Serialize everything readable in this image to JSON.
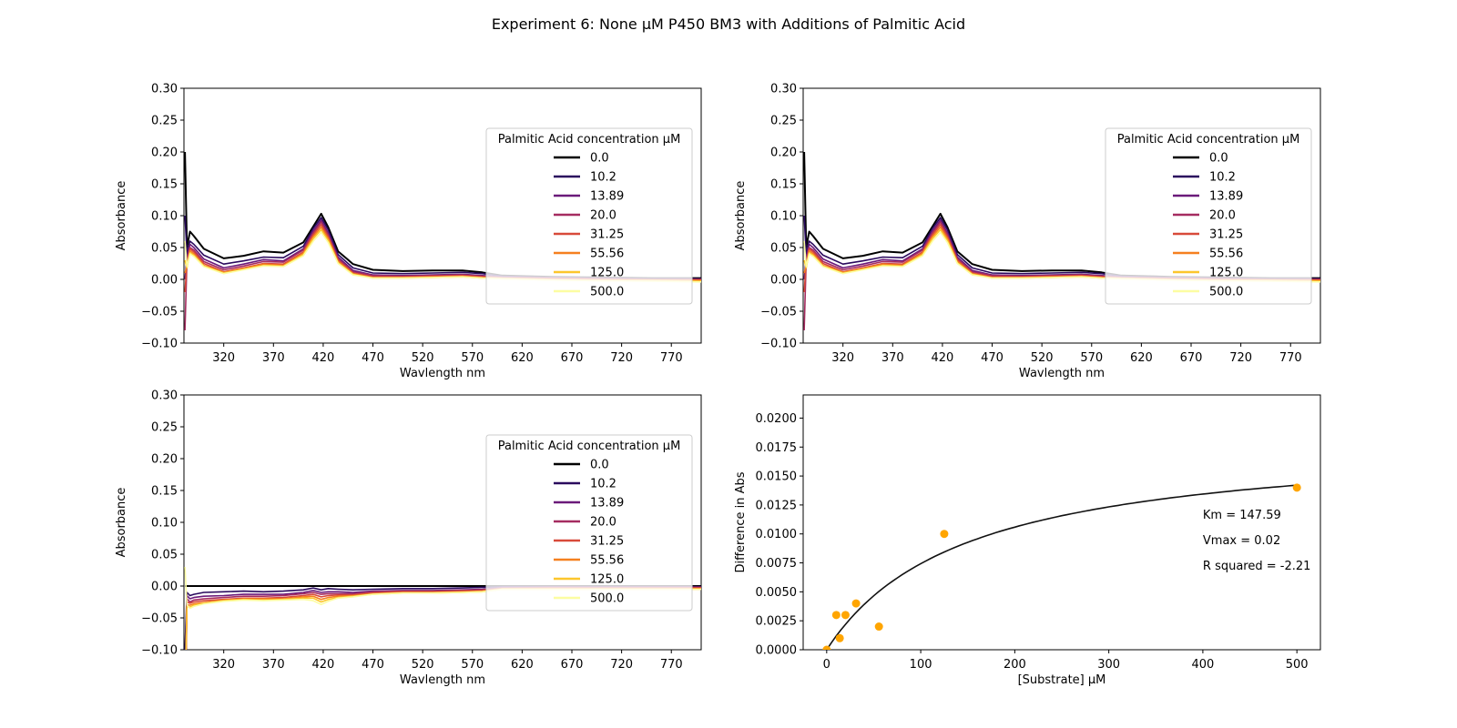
{
  "figure": {
    "title": "Experiment 6: None μM P450 BM3 with Additions of Palmitic Acid"
  },
  "colors": {
    "series": [
      "#000000",
      "#2a0a5e",
      "#6b1a7a",
      "#a52c60",
      "#d84a3a",
      "#f5801f",
      "#fcc62c",
      "#fcfda2"
    ],
    "fit_line": "#111111",
    "points": "#ffa500"
  },
  "chart_data": [
    {
      "type": "line",
      "panel": "top-left",
      "xlabel": "Wavlength nm",
      "ylabel": "Absorbance",
      "xlim": [
        280,
        800
      ],
      "ylim": [
        -0.1,
        0.3
      ],
      "xticks": [
        320,
        370,
        420,
        470,
        520,
        570,
        620,
        670,
        720,
        770
      ],
      "yticks": [
        -0.1,
        -0.05,
        0.0,
        0.05,
        0.1,
        0.15,
        0.2,
        0.25,
        0.3
      ],
      "ytick_labels": [
        "−0.10",
        "−0.05",
        "0.00",
        "0.05",
        "0.10",
        "0.15",
        "0.20",
        "0.25",
        "0.30"
      ],
      "legend_title": "Palmitic Acid concentration µM",
      "legend_position": "center-right",
      "x": [
        281,
        283,
        286,
        290,
        300,
        320,
        340,
        360,
        380,
        400,
        410,
        418,
        425,
        435,
        450,
        470,
        500,
        530,
        560,
        580,
        600,
        650,
        700,
        750,
        800
      ],
      "series": [
        {
          "name": "0.0",
          "values": [
            0.2,
            0.05,
            0.075,
            0.068,
            0.048,
            0.033,
            0.037,
            0.044,
            0.042,
            0.058,
            0.083,
            0.103,
            0.082,
            0.044,
            0.024,
            0.015,
            0.013,
            0.014,
            0.014,
            0.011,
            0.006,
            0.004,
            0.003,
            0.002,
            0.002
          ]
        },
        {
          "name": "10.2",
          "values": [
            0.1,
            0.04,
            0.06,
            0.055,
            0.038,
            0.024,
            0.029,
            0.035,
            0.034,
            0.052,
            0.08,
            0.097,
            0.078,
            0.039,
            0.018,
            0.01,
            0.009,
            0.01,
            0.011,
            0.009,
            0.005,
            0.003,
            0.002,
            0.001,
            0.001
          ]
        },
        {
          "name": "13.89",
          "values": [
            0.0,
            0.035,
            0.055,
            0.05,
            0.032,
            0.018,
            0.024,
            0.031,
            0.029,
            0.048,
            0.076,
            0.093,
            0.073,
            0.035,
            0.014,
            0.007,
            0.006,
            0.007,
            0.008,
            0.006,
            0.004,
            0.002,
            0.001,
            0.0,
            0.0
          ]
        },
        {
          "name": "20.0",
          "values": [
            -0.08,
            0.03,
            0.05,
            0.046,
            0.028,
            0.015,
            0.021,
            0.028,
            0.027,
            0.046,
            0.073,
            0.09,
            0.07,
            0.032,
            0.012,
            0.006,
            0.005,
            0.006,
            0.007,
            0.005,
            0.003,
            0.002,
            0.001,
            0.0,
            0.0
          ]
        },
        {
          "name": "31.25",
          "values": [
            -0.02,
            0.025,
            0.048,
            0.043,
            0.025,
            0.012,
            0.018,
            0.025,
            0.024,
            0.043,
            0.07,
            0.086,
            0.067,
            0.03,
            0.01,
            0.004,
            0.004,
            0.005,
            0.006,
            0.004,
            0.002,
            0.001,
            0.0,
            -0.001,
            -0.001
          ]
        },
        {
          "name": "55.56",
          "values": [
            0.01,
            0.02,
            0.045,
            0.04,
            0.022,
            0.011,
            0.017,
            0.024,
            0.022,
            0.041,
            0.067,
            0.082,
            0.064,
            0.028,
            0.009,
            0.003,
            0.003,
            0.004,
            0.005,
            0.003,
            0.002,
            0.0,
            -0.001,
            -0.001,
            -0.002
          ]
        },
        {
          "name": "125.0",
          "values": [
            0.03,
            0.018,
            0.042,
            0.038,
            0.021,
            0.01,
            0.016,
            0.022,
            0.021,
            0.039,
            0.064,
            0.078,
            0.061,
            0.026,
            0.008,
            0.002,
            0.002,
            0.003,
            0.004,
            0.002,
            0.001,
            -0.001,
            -0.002,
            -0.002,
            -0.003
          ]
        },
        {
          "name": "500.0",
          "values": [
            0.06,
            0.02,
            0.04,
            0.036,
            0.02,
            0.009,
            0.015,
            0.021,
            0.02,
            0.037,
            0.06,
            0.074,
            0.058,
            0.025,
            0.007,
            0.002,
            0.002,
            0.003,
            0.004,
            0.002,
            0.001,
            -0.001,
            -0.002,
            -0.003,
            -0.004
          ]
        }
      ]
    },
    {
      "type": "line",
      "panel": "top-right",
      "xlabel": "Wavlength nm",
      "ylabel": "Absorbance",
      "xlim": [
        280,
        800
      ],
      "ylim": [
        -0.1,
        0.3
      ],
      "xticks": [
        320,
        370,
        420,
        470,
        520,
        570,
        620,
        670,
        720,
        770
      ],
      "yticks": [
        -0.1,
        -0.05,
        0.0,
        0.05,
        0.1,
        0.15,
        0.2,
        0.25,
        0.3
      ],
      "ytick_labels": [
        "−0.10",
        "−0.05",
        "0.00",
        "0.05",
        "0.10",
        "0.15",
        "0.20",
        "0.25",
        "0.30"
      ],
      "legend_title": "Palmitic Acid concentration µM",
      "legend_position": "center-right",
      "x": [
        281,
        283,
        286,
        290,
        300,
        320,
        340,
        360,
        380,
        400,
        410,
        418,
        425,
        435,
        450,
        470,
        500,
        530,
        560,
        580,
        600,
        650,
        700,
        750,
        800
      ],
      "series": [
        {
          "name": "0.0",
          "values": [
            0.2,
            0.05,
            0.075,
            0.068,
            0.048,
            0.033,
            0.037,
            0.044,
            0.042,
            0.058,
            0.083,
            0.103,
            0.082,
            0.044,
            0.024,
            0.015,
            0.013,
            0.014,
            0.014,
            0.011,
            0.006,
            0.004,
            0.003,
            0.002,
            0.002
          ]
        },
        {
          "name": "10.2",
          "values": [
            0.1,
            0.04,
            0.06,
            0.055,
            0.038,
            0.024,
            0.029,
            0.035,
            0.034,
            0.052,
            0.08,
            0.097,
            0.078,
            0.039,
            0.018,
            0.01,
            0.009,
            0.01,
            0.011,
            0.009,
            0.005,
            0.003,
            0.002,
            0.001,
            0.001
          ]
        },
        {
          "name": "13.89",
          "values": [
            0.0,
            0.035,
            0.055,
            0.05,
            0.032,
            0.018,
            0.024,
            0.031,
            0.029,
            0.048,
            0.076,
            0.093,
            0.073,
            0.035,
            0.014,
            0.007,
            0.006,
            0.007,
            0.008,
            0.006,
            0.004,
            0.002,
            0.001,
            0.0,
            0.0
          ]
        },
        {
          "name": "20.0",
          "values": [
            -0.08,
            0.03,
            0.05,
            0.046,
            0.028,
            0.015,
            0.021,
            0.028,
            0.027,
            0.046,
            0.073,
            0.09,
            0.07,
            0.032,
            0.012,
            0.006,
            0.005,
            0.006,
            0.007,
            0.005,
            0.003,
            0.002,
            0.001,
            0.0,
            0.0
          ]
        },
        {
          "name": "31.25",
          "values": [
            -0.02,
            0.025,
            0.048,
            0.043,
            0.025,
            0.012,
            0.018,
            0.025,
            0.024,
            0.043,
            0.07,
            0.086,
            0.067,
            0.03,
            0.01,
            0.004,
            0.004,
            0.005,
            0.006,
            0.004,
            0.002,
            0.001,
            0.0,
            -0.001,
            -0.001
          ]
        },
        {
          "name": "55.56",
          "values": [
            0.01,
            0.02,
            0.045,
            0.04,
            0.022,
            0.011,
            0.017,
            0.024,
            0.022,
            0.041,
            0.067,
            0.082,
            0.064,
            0.028,
            0.009,
            0.003,
            0.003,
            0.004,
            0.005,
            0.003,
            0.002,
            0.0,
            -0.001,
            -0.001,
            -0.002
          ]
        },
        {
          "name": "125.0",
          "values": [
            0.03,
            0.018,
            0.042,
            0.038,
            0.021,
            0.01,
            0.016,
            0.022,
            0.021,
            0.039,
            0.064,
            0.078,
            0.061,
            0.026,
            0.008,
            0.002,
            0.002,
            0.003,
            0.004,
            0.002,
            0.001,
            -0.001,
            -0.002,
            -0.002,
            -0.003
          ]
        },
        {
          "name": "500.0",
          "values": [
            0.06,
            0.02,
            0.04,
            0.036,
            0.02,
            0.009,
            0.015,
            0.021,
            0.02,
            0.037,
            0.06,
            0.074,
            0.058,
            0.025,
            0.007,
            0.002,
            0.002,
            0.003,
            0.004,
            0.002,
            0.001,
            -0.001,
            -0.002,
            -0.003,
            -0.004
          ]
        }
      ]
    },
    {
      "type": "line",
      "panel": "bottom-left",
      "xlabel": "Wavlength nm",
      "ylabel": "Absorbance",
      "xlim": [
        280,
        800
      ],
      "ylim": [
        -0.1,
        0.3
      ],
      "xticks": [
        320,
        370,
        420,
        470,
        520,
        570,
        620,
        670,
        720,
        770
      ],
      "yticks": [
        -0.1,
        -0.05,
        0.0,
        0.05,
        0.1,
        0.15,
        0.2,
        0.25,
        0.3
      ],
      "ytick_labels": [
        "−0.10",
        "−0.05",
        "0.00",
        "0.05",
        "0.10",
        "0.15",
        "0.20",
        "0.25",
        "0.30"
      ],
      "legend_title": "Palmitic Acid concentration µM",
      "legend_position": "center-right",
      "x": [
        281,
        283,
        286,
        290,
        300,
        320,
        340,
        360,
        380,
        400,
        410,
        418,
        425,
        435,
        450,
        470,
        500,
        530,
        560,
        580,
        600,
        650,
        700,
        750,
        800
      ],
      "series": [
        {
          "name": "0.0",
          "values": [
            0,
            0,
            0,
            0,
            0,
            0,
            0,
            0,
            0,
            0,
            0,
            0,
            0,
            0,
            0,
            0,
            0,
            0,
            0,
            0,
            0,
            0,
            0,
            0,
            0
          ]
        },
        {
          "name": "10.2",
          "values": [
            -0.1,
            -0.01,
            -0.015,
            -0.013,
            -0.01,
            -0.009,
            -0.008,
            -0.009,
            -0.008,
            -0.006,
            -0.003,
            -0.006,
            -0.004,
            -0.005,
            -0.006,
            -0.005,
            -0.004,
            -0.004,
            -0.003,
            -0.002,
            -0.001,
            -0.001,
            -0.001,
            -0.001,
            -0.001
          ]
        },
        {
          "name": "13.89",
          "values": [
            -0.2,
            -0.015,
            -0.02,
            -0.018,
            -0.016,
            -0.015,
            -0.013,
            -0.013,
            -0.013,
            -0.01,
            -0.007,
            -0.01,
            -0.009,
            -0.009,
            -0.01,
            -0.008,
            -0.007,
            -0.007,
            -0.006,
            -0.005,
            -0.002,
            -0.002,
            -0.002,
            -0.002,
            -0.002
          ]
        },
        {
          "name": "20.0",
          "values": [
            -0.28,
            -0.02,
            -0.025,
            -0.022,
            -0.02,
            -0.018,
            -0.016,
            -0.016,
            -0.015,
            -0.012,
            -0.01,
            -0.013,
            -0.012,
            -0.012,
            -0.012,
            -0.009,
            -0.008,
            -0.008,
            -0.007,
            -0.006,
            -0.003,
            -0.002,
            -0.002,
            -0.002,
            -0.002
          ]
        },
        {
          "name": "31.25",
          "values": [
            -0.22,
            -0.025,
            -0.027,
            -0.025,
            -0.023,
            -0.021,
            -0.019,
            -0.019,
            -0.018,
            -0.015,
            -0.013,
            -0.017,
            -0.015,
            -0.014,
            -0.014,
            -0.011,
            -0.009,
            -0.009,
            -0.008,
            -0.007,
            -0.004,
            -0.003,
            -0.003,
            -0.003,
            -0.003
          ]
        },
        {
          "name": "55.56",
          "values": [
            -0.19,
            -0.03,
            -0.03,
            -0.028,
            -0.026,
            -0.022,
            -0.02,
            -0.02,
            -0.02,
            -0.017,
            -0.016,
            -0.021,
            -0.018,
            -0.016,
            -0.015,
            -0.012,
            -0.01,
            -0.01,
            -0.009,
            -0.008,
            -0.004,
            -0.004,
            -0.004,
            -0.004,
            -0.004
          ]
        },
        {
          "name": "125.0",
          "values": [
            -0.17,
            -0.032,
            -0.033,
            -0.03,
            -0.027,
            -0.023,
            -0.021,
            -0.022,
            -0.021,
            -0.019,
            -0.019,
            -0.025,
            -0.021,
            -0.018,
            -0.016,
            -0.013,
            -0.011,
            -0.011,
            -0.01,
            -0.009,
            -0.005,
            -0.005,
            -0.005,
            -0.005,
            -0.005
          ]
        },
        {
          "name": "500.0",
          "values": [
            0.03,
            -0.03,
            -0.035,
            -0.032,
            -0.028,
            -0.024,
            -0.022,
            -0.023,
            -0.022,
            -0.021,
            -0.023,
            -0.029,
            -0.024,
            -0.019,
            -0.017,
            -0.013,
            -0.011,
            -0.011,
            -0.01,
            -0.009,
            -0.005,
            -0.005,
            -0.005,
            -0.005,
            -0.005
          ]
        }
      ]
    },
    {
      "type": "scatter",
      "panel": "bottom-right",
      "xlabel": "[Substrate] µM",
      "ylabel": "Difference in Abs",
      "xlim": [
        -25,
        525
      ],
      "ylim": [
        0.0,
        0.022
      ],
      "xticks": [
        0,
        100,
        200,
        300,
        400,
        500
      ],
      "yticks": [
        0.0,
        0.0025,
        0.005,
        0.0075,
        0.01,
        0.0125,
        0.015,
        0.0175,
        0.02
      ],
      "ytick_labels": [
        "0.0000",
        "0.0025",
        "0.0050",
        "0.0075",
        "0.0100",
        "0.0125",
        "0.0150",
        "0.0175",
        "0.0200"
      ],
      "points": {
        "x": [
          0.0,
          10.2,
          13.89,
          20.0,
          31.25,
          55.56,
          125.0,
          500.0
        ],
        "y": [
          0.0,
          0.003,
          0.001,
          0.003,
          0.004,
          0.002,
          0.01,
          0.014
        ]
      },
      "fit": {
        "km": 147.59,
        "vmax": 0.0184,
        "x_range": [
          0,
          500
        ]
      },
      "annotations": [
        "Km = 147.59",
        "Vmax = 0.02",
        "R squared = -2.21"
      ]
    }
  ]
}
